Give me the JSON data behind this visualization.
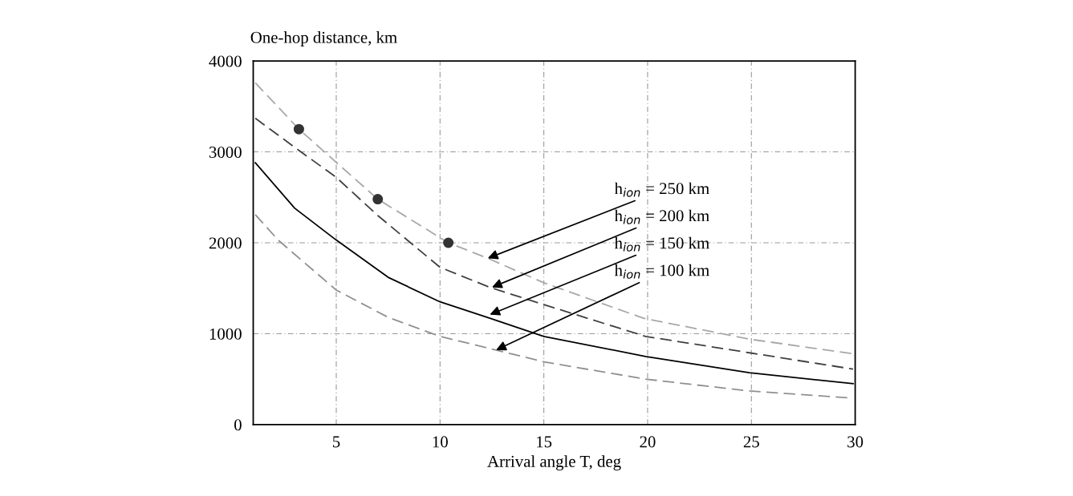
{
  "chart_data": {
    "type": "line",
    "xlabel": "Arrival angle T, deg",
    "ylabel": "One-hop distance, km",
    "xlim": [
      1,
      30
    ],
    "xticks": [
      5,
      10,
      15,
      20,
      25,
      30
    ],
    "ylim": [
      0,
      4000
    ],
    "yticks": [
      0,
      1000,
      2000,
      3000,
      4000
    ],
    "grid": true,
    "legend": false,
    "marker": "none",
    "series": [
      {
        "color": "#a8a8a8",
        "line_style": "dashed",
        "x": [
          1.1,
          3.2,
          7,
          10.4,
          12.3,
          15,
          19.8,
          24.9,
          29.9
        ],
        "values": [
          3760,
          3250,
          2480,
          2000,
          1830,
          1560,
          1170,
          940,
          780
        ]
      },
      {
        "color": "#404040",
        "line_style": "dashed",
        "x": [
          1.1,
          3,
          5,
          7,
          10,
          12.4,
          15,
          19.9,
          24.9,
          29.9
        ],
        "values": [
          3370,
          3050,
          2720,
          2300,
          1730,
          1510,
          1320,
          970,
          790,
          610
        ]
      },
      {
        "color": "#000000",
        "line_style": "solid",
        "x": [
          1.1,
          3,
          5,
          7.5,
          10,
          12.4,
          15,
          19.9,
          24.9,
          29.9
        ],
        "values": [
          2880,
          2380,
          2030,
          1620,
          1350,
          1170,
          970,
          750,
          570,
          450
        ]
      },
      {
        "color": "#909090",
        "line_style": "dashed",
        "x": [
          1.1,
          2.2,
          5,
          7.5,
          10,
          12.7,
          15,
          19.9,
          24.9,
          29.9
        ],
        "values": [
          2310,
          2030,
          1480,
          1180,
          970,
          820,
          690,
          500,
          370,
          290
        ]
      },
      {
        "type": "scatter",
        "color": "#333333",
        "marker": "circle",
        "x": [
          3.2,
          7,
          10.4
        ],
        "values": [
          3250,
          2480,
          2000
        ]
      }
    ],
    "annotations": [
      {
        "text": "h$_{ion}$ = 250 km",
        "x": 12.3,
        "y": 1830
      },
      {
        "text": "h$_{ion}$ = 200 km",
        "x": 12.5,
        "y": 1510
      },
      {
        "text": "h$_{ion}$ = 150 km",
        "x": 12.4,
        "y": 1210
      },
      {
        "text": "h$_{ion}$ = 100 km",
        "x": 12.7,
        "y": 820
      }
    ]
  }
}
